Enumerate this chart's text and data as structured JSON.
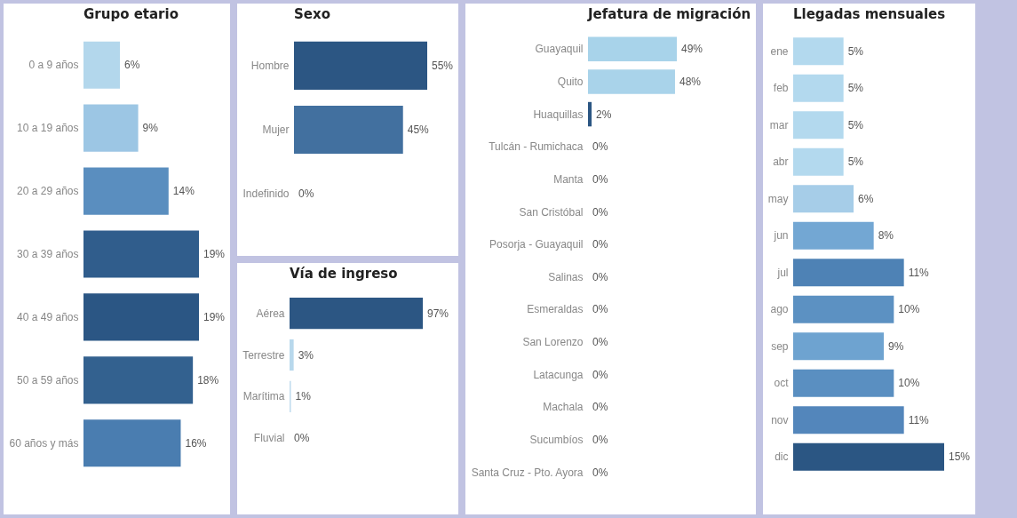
{
  "chart_data": [
    {
      "type": "bar",
      "orientation": "horizontal",
      "title": "Grupo etario",
      "tick_labels": "y",
      "categories": [
        "0 a 9 años",
        "10 a 19 años",
        "20 a 29 años",
        "30 a 39 años",
        "40 a 49 años",
        "50 a 59 años",
        "60 años y más"
      ],
      "values": [
        6,
        9,
        14,
        19,
        19,
        18,
        16
      ],
      "value_labels": [
        "6%",
        "9%",
        "14%",
        "19%",
        "19%",
        "18%",
        "16%"
      ],
      "colors": [
        "#b3d7ec",
        "#9cc6e4",
        "#5a8ebf",
        "#305d8c",
        "#2b5684",
        "#33618f",
        "#4a7db0"
      ]
    },
    {
      "type": "bar",
      "orientation": "horizontal",
      "title": "Sexo",
      "tick_labels": "y",
      "categories": [
        "Hombre",
        "Mujer",
        "Indefinido"
      ],
      "values": [
        55,
        45,
        0
      ],
      "value_labels": [
        "55%",
        "45%",
        "0%"
      ],
      "colors": [
        "#2c5683",
        "#42709f",
        "#b8d8ec"
      ]
    },
    {
      "type": "bar",
      "orientation": "horizontal",
      "title": "Vía de ingreso",
      "tick_labels": "y",
      "categories": [
        "Aérea",
        "Terrestre",
        "Marítima",
        "Fluvial"
      ],
      "values": [
        97,
        3,
        1,
        0
      ],
      "value_labels": [
        "97%",
        "3%",
        "1%",
        "0%"
      ],
      "colors": [
        "#2c5683",
        "#b8d8ec",
        "#c0dcee",
        "#c0dcee"
      ]
    },
    {
      "type": "bar",
      "orientation": "horizontal",
      "title": "Jefatura de migración",
      "tick_labels": "y",
      "categories": [
        "Guayaquil",
        "Quito",
        "Huaquillas",
        "Tulcán - Rumichaca",
        "Manta",
        "San Cristóbal",
        "Posorja - Guayaquil",
        "Salinas",
        "Esmeraldas",
        "San Lorenzo",
        "Latacunga",
        "Machala",
        "Sucumbíos",
        "Santa Cruz - Pto. Ayora"
      ],
      "values": [
        49,
        48,
        2,
        0,
        0,
        0,
        0,
        0,
        0,
        0,
        0,
        0,
        0,
        0
      ],
      "value_labels": [
        "49%",
        "48%",
        "2%",
        "0%",
        "0%",
        "0%",
        "0%",
        "0%",
        "0%",
        "0%",
        "0%",
        "0%",
        "0%",
        "0%"
      ],
      "colors": [
        "#a8d3ea",
        "#a9d3ea",
        "#2c5683",
        "#2c5683",
        "#2c5683",
        "#2c5683",
        "#2c5683",
        "#2c5683",
        "#2c5683",
        "#2c5683",
        "#2c5683",
        "#2c5683",
        "#2c5683",
        "#2c5683"
      ]
    },
    {
      "type": "bar",
      "orientation": "horizontal",
      "title": "Llegadas mensuales",
      "tick_labels": "y",
      "categories": [
        "ene",
        "feb",
        "mar",
        "abr",
        "may",
        "jun",
        "jul",
        "ago",
        "sep",
        "oct",
        "nov",
        "dic"
      ],
      "values": [
        5,
        5,
        5,
        5,
        6,
        8,
        11,
        10,
        9,
        10,
        11,
        15
      ],
      "value_labels": [
        "5%",
        "5%",
        "5%",
        "5%",
        "6%",
        "8%",
        "11%",
        "10%",
        "9%",
        "10%",
        "11%",
        "15%"
      ],
      "colors": [
        "#b3d9ee",
        "#b3d9ee",
        "#b3d9ee",
        "#b3d9ee",
        "#a6cde8",
        "#73a7d3",
        "#4e82b5",
        "#5c91c2",
        "#6ea3d0",
        "#5a8fc1",
        "#5386bb",
        "#2b5683"
      ]
    }
  ]
}
